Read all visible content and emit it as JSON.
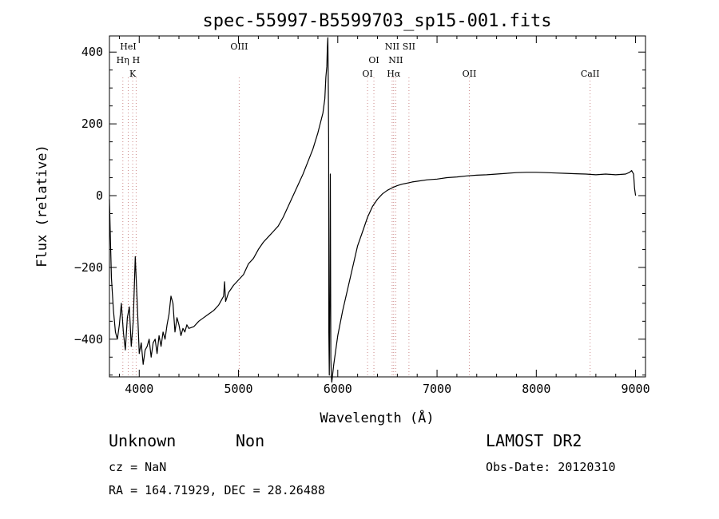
{
  "chart_data": {
    "type": "line",
    "title": "spec-55997-B5599703_sp15-001.fits",
    "xlabel": "Wavelength (Å)",
    "ylabel": "Flux (relative)",
    "xlim": [
      3700,
      9100
    ],
    "ylim": [
      -505,
      445
    ],
    "x_ticks": [
      4000,
      5000,
      6000,
      7000,
      8000,
      9000
    ],
    "y_ticks": [
      -400,
      -200,
      0,
      200,
      400
    ],
    "grid": false,
    "series": [
      {
        "x": [
          3700,
          3710,
          3720,
          3740,
          3760,
          3780,
          3800,
          3820,
          3840,
          3860,
          3880,
          3900,
          3920,
          3940,
          3960,
          3980,
          4000,
          4020,
          4040,
          4060,
          4080,
          4100,
          4120,
          4140,
          4160,
          4180,
          4200,
          4220,
          4240,
          4260,
          4280,
          4300,
          4320,
          4340,
          4360,
          4380,
          4400,
          4420,
          4440,
          4460,
          4480,
          4500,
          4550,
          4600,
          4650,
          4700,
          4750,
          4800,
          4850,
          4860,
          4870,
          4900,
          4950,
          5000,
          5050,
          5100,
          5150,
          5200,
          5250,
          5300,
          5350,
          5400,
          5450,
          5500,
          5550,
          5600,
          5650,
          5700,
          5750,
          5800,
          5850,
          5870,
          5880,
          5890,
          5895,
          5900,
          5905,
          5908,
          5910,
          5915,
          5920,
          5925,
          5930,
          5935,
          5940,
          5960,
          5980,
          6000,
          6050,
          6100,
          6150,
          6200,
          6250,
          6300,
          6350,
          6400,
          6450,
          6500,
          6550,
          6600,
          6650,
          6700,
          6750,
          6800,
          6900,
          7000,
          7100,
          7200,
          7300,
          7400,
          7500,
          7600,
          7700,
          7800,
          7900,
          8000,
          8100,
          8200,
          8300,
          8400,
          8500,
          8600,
          8700,
          8800,
          8900,
          8940,
          8960,
          8980,
          8990,
          9000
        ],
        "y": [
          -10,
          -120,
          -230,
          -320,
          -380,
          -400,
          -360,
          -300,
          -380,
          -430,
          -340,
          -310,
          -420,
          -350,
          -170,
          -300,
          -440,
          -410,
          -470,
          -430,
          -420,
          -400,
          -450,
          -410,
          -400,
          -440,
          -390,
          -420,
          -380,
          -400,
          -360,
          -330,
          -280,
          -300,
          -380,
          -340,
          -360,
          -390,
          -370,
          -380,
          -360,
          -370,
          -365,
          -350,
          -340,
          -330,
          -320,
          -305,
          -280,
          -240,
          -295,
          -270,
          -250,
          -235,
          -220,
          -190,
          -175,
          -150,
          -130,
          -115,
          -100,
          -85,
          -60,
          -30,
          0,
          30,
          60,
          95,
          130,
          175,
          230,
          270,
          330,
          360,
          410,
          440,
          290,
          150,
          -380,
          -500,
          -250,
          60,
          -450,
          -500,
          -520,
          -470,
          -430,
          -390,
          -320,
          -260,
          -200,
          -140,
          -100,
          -60,
          -30,
          -10,
          5,
          15,
          22,
          28,
          32,
          35,
          38,
          40,
          44,
          46,
          50,
          52,
          55,
          57,
          58,
          60,
          62,
          64,
          65,
          65,
          64,
          63,
          62,
          61,
          60,
          58,
          60,
          58,
          60,
          65,
          70,
          60,
          20,
          0
        ]
      }
    ],
    "line_markers": [
      {
        "label": "HeI",
        "x": 3889,
        "row": 0
      },
      {
        "label": "Hη",
        "x": 3835,
        "row": 1
      },
      {
        "label": "H",
        "x": 3969,
        "row": 1
      },
      {
        "label": "K",
        "x": 3934,
        "row": 2
      },
      {
        "label": "OIII",
        "x": 5007,
        "row": 0
      },
      {
        "label": "NII",
        "x": 6548,
        "row": 0
      },
      {
        "label": "SII",
        "x": 6717,
        "row": 0
      },
      {
        "label": "OI",
        "x": 6364,
        "row": 1
      },
      {
        "label": "NII",
        "x": 6584,
        "row": 1
      },
      {
        "label": "OI",
        "x": 6300,
        "row": 2
      },
      {
        "label": "Hα",
        "x": 6563,
        "row": 2
      },
      {
        "label": "OII",
        "x": 7325,
        "row": 2
      },
      {
        "label": "CaII",
        "x": 8542,
        "row": 2
      }
    ],
    "marker_lines_x": [
      3835,
      3889,
      3934,
      3969,
      5007,
      6300,
      6364,
      6548,
      6563,
      6584,
      6717,
      7325,
      8542
    ]
  },
  "footer": {
    "class_label": "Unknown",
    "subclass_label": "Non",
    "survey": "LAMOST DR2",
    "cz": "cz = NaN",
    "obs_date": "Obs-Date: 20120310",
    "coords": "RA = 164.71929, DEC =  28.26488"
  }
}
